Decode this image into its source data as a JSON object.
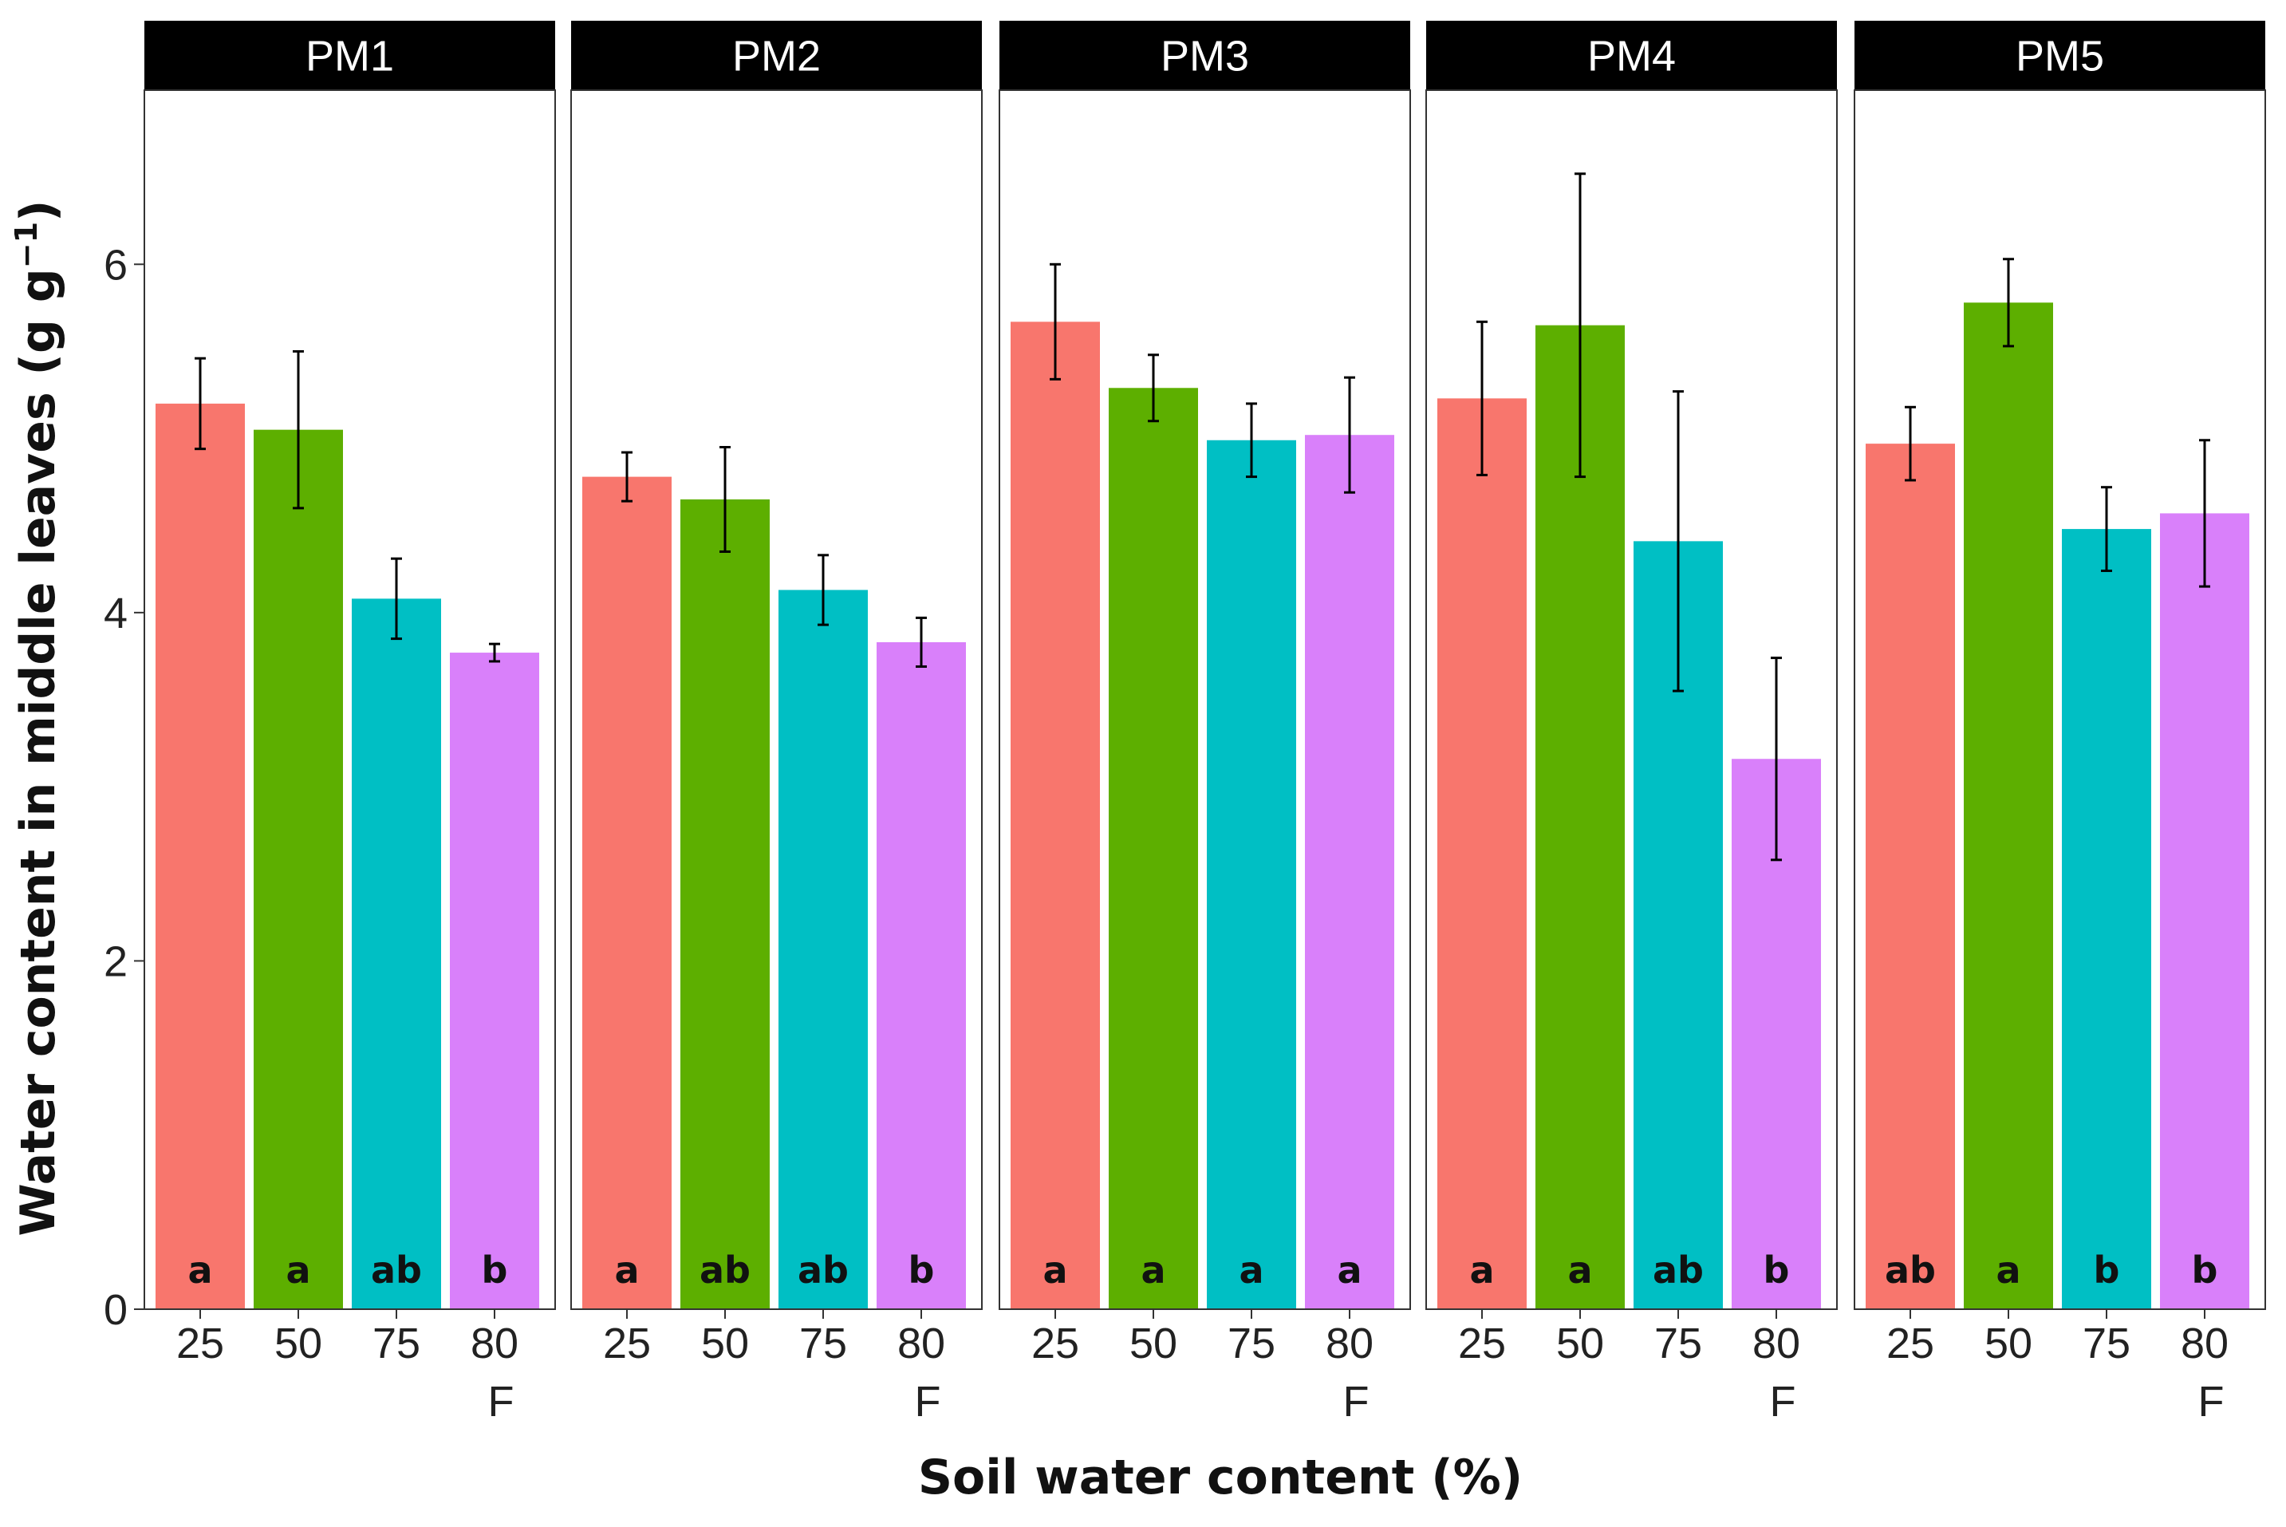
{
  "chart_data": {
    "type": "bar",
    "xlabel": "Soil water content (%)",
    "ylabel_main": "Water content in middle leaves (g g",
    "ylabel_sup": "−1",
    "ylabel_close": ")",
    "ylim": [
      0,
      7.0
    ],
    "y_ticks": [
      {
        "value": 0,
        "label": "0"
      },
      {
        "value": 2,
        "label": "2"
      },
      {
        "value": 4,
        "label": "4"
      },
      {
        "value": 6,
        "label": "6"
      }
    ],
    "categories": [
      {
        "line1": "25",
        "line2": ""
      },
      {
        "line1": "50",
        "line2": ""
      },
      {
        "line1": "75",
        "line2": ""
      },
      {
        "line1": "80",
        "line2": "F"
      }
    ],
    "colors": [
      "#F8766D",
      "#5DAF00",
      "#00BFC4",
      "#D980FA"
    ],
    "panels": [
      {
        "name": "PM1",
        "values": [
          5.2,
          5.05,
          4.08,
          3.77
        ],
        "errors": [
          0.26,
          0.45,
          0.23,
          0.05
        ],
        "letters": [
          "a",
          "a",
          "ab",
          "b"
        ]
      },
      {
        "name": "PM2",
        "values": [
          4.78,
          4.65,
          4.13,
          3.83
        ],
        "errors": [
          0.14,
          0.3,
          0.2,
          0.14
        ],
        "letters": [
          "a",
          "ab",
          "ab",
          "b"
        ]
      },
      {
        "name": "PM3",
        "values": [
          5.67,
          5.29,
          4.99,
          5.02
        ],
        "errors": [
          0.33,
          0.19,
          0.21,
          0.33
        ],
        "letters": [
          "a",
          "a",
          "a",
          "a"
        ]
      },
      {
        "name": "PM4",
        "values": [
          5.23,
          5.65,
          4.41,
          3.16
        ],
        "errors": [
          0.44,
          0.87,
          0.86,
          0.58
        ],
        "letters": [
          "a",
          "a",
          "ab",
          "b"
        ]
      },
      {
        "name": "PM5",
        "values": [
          4.97,
          5.78,
          4.48,
          4.57
        ],
        "errors": [
          0.21,
          0.25,
          0.24,
          0.42
        ],
        "letters": [
          "ab",
          "a",
          "b",
          "b"
        ]
      }
    ]
  }
}
